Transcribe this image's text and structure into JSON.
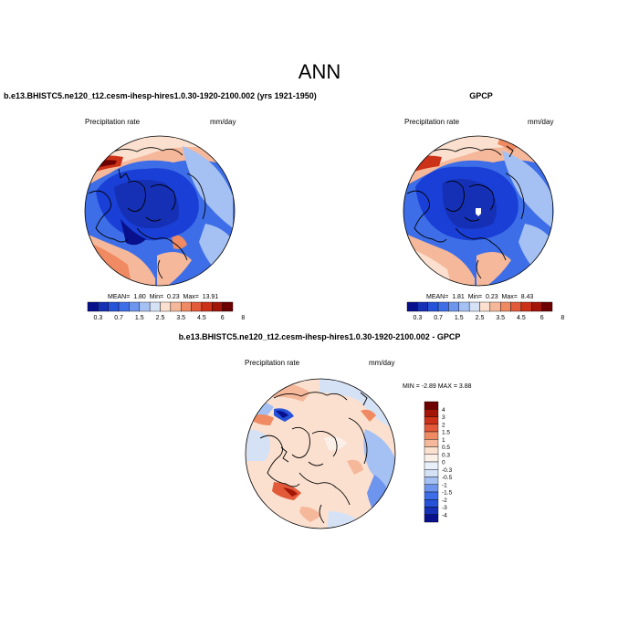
{
  "main_title": "ANN",
  "panels": [
    {
      "id": "model",
      "title": "b.e13.BHISTC5.ne120_t12.cesm-ihesp-hires1.0.30-1920-2100.002 (yrs 1921-1950)",
      "variable_label": "Precipitation rate",
      "units_label": "mm/day",
      "stats": {
        "mean_label": "MEAN=",
        "mean": "1.80",
        "min_label": "Min=",
        "min": "0.23",
        "max_label": "Max=",
        "max": "13.91"
      }
    },
    {
      "id": "obs",
      "title": "GPCP",
      "variable_label": "Precipitation rate",
      "units_label": "mm/day",
      "stats": {
        "mean_label": "MEAN=",
        "mean": "1.81",
        "min_label": "Min=",
        "min": "0.23",
        "max_label": "Max=",
        "max": "8.43"
      }
    },
    {
      "id": "diff",
      "title": "b.e13.BHISTC5.ne120_t12.cesm-ihesp-hires1.0.30-1920-2100.002 - GPCP",
      "variable_label": "Precipitation rate",
      "units_label": "mm/day",
      "stats_text": "MIN =  -2.89 MAX =  3.88"
    }
  ],
  "colorbar_abs": {
    "ticks": [
      "0.3",
      "0.7",
      "1.5",
      "2.5",
      "3.5",
      "4.5",
      "6",
      "8"
    ],
    "colors": [
      "#08108c",
      "#1530b5",
      "#2552d8",
      "#3d6ee8",
      "#6e95ee",
      "#a5c0f2",
      "#d5e2f6",
      "#fbe0cf",
      "#f6b89a",
      "#ef8a62",
      "#e35a3a",
      "#cc3218",
      "#a31507",
      "#6d0000"
    ]
  },
  "colorbar_diff": {
    "ticks": [
      "4",
      "3",
      "2",
      "1.5",
      "1",
      "0.5",
      "0.3",
      "0",
      "-0.3",
      "-0.5",
      "-1",
      "-1.5",
      "-2",
      "-3",
      "-4"
    ],
    "colors": [
      "#6d0000",
      "#a31507",
      "#cc3218",
      "#e35a3a",
      "#ef8a62",
      "#f6b89a",
      "#fbe0cf",
      "#fbf0e8",
      "#e8f0fb",
      "#d5e2f6",
      "#a5c0f2",
      "#6e95ee",
      "#3d6ee8",
      "#2552d8",
      "#1530b5",
      "#08108c"
    ]
  },
  "colors": {
    "deep_blue": "#1a3fd6",
    "mid_blue": "#3d6ee8",
    "light_blue": "#a5c0f2",
    "pale_peach": "#fbe0cf",
    "peach": "#f6b89a",
    "orange_red": "#e35a3a",
    "dark_red": "#a31507",
    "coastline": "#000000"
  }
}
